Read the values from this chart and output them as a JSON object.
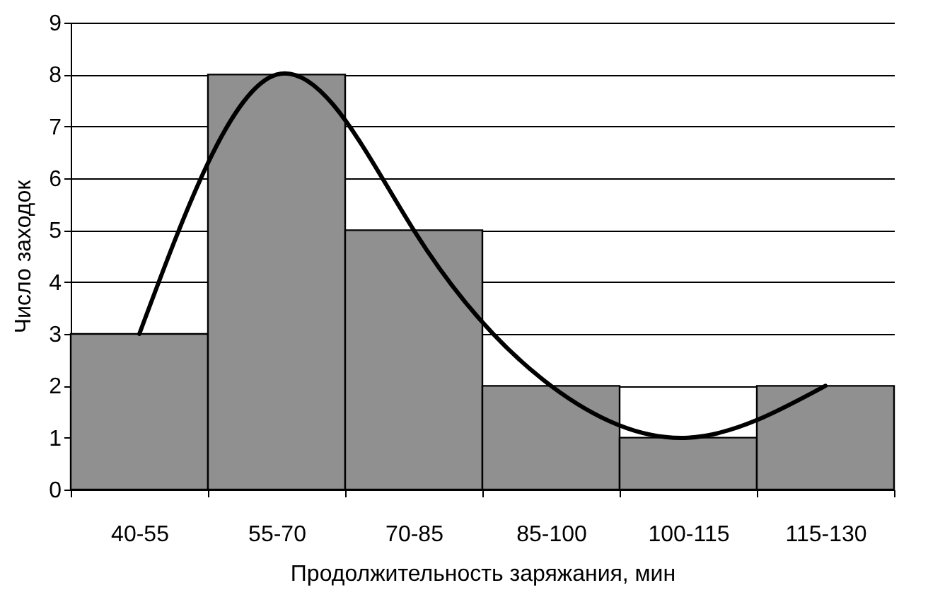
{
  "chart_data": {
    "type": "bar",
    "xlabel": "Продолжительность заряжания, мин",
    "ylabel": "Число заходок",
    "categories": [
      "40-55",
      "55-70",
      "70-85",
      "85-100",
      "100-115",
      "115-130"
    ],
    "series": [
      {
        "color": "#909090",
        "values": [
          3,
          8,
          5,
          2,
          1,
          2
        ]
      },
      {
        "type": "line",
        "color": "#000000",
        "values": [
          3,
          8,
          5,
          2,
          1,
          2
        ]
      }
    ],
    "ylim": [
      0,
      9
    ],
    "yticks": [
      0,
      1,
      2,
      3,
      4,
      5,
      6,
      7,
      8,
      9
    ],
    "grid": "y"
  }
}
